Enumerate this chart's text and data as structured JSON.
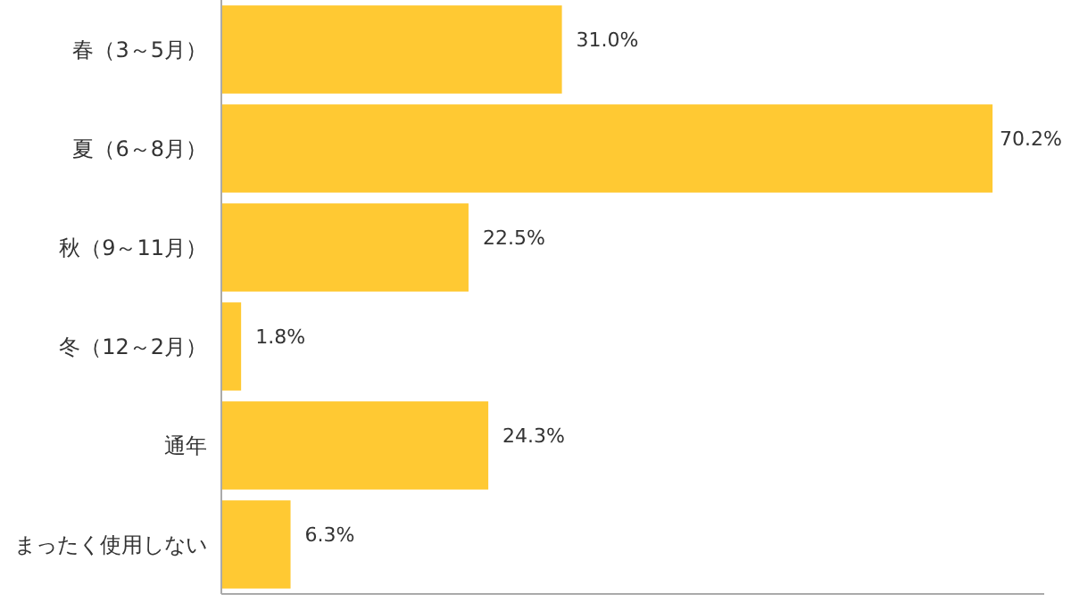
{
  "chart_data": {
    "type": "bar",
    "orientation": "horizontal",
    "categories": [
      "春（3～5月）",
      "夏（6～8月）",
      "秋（9～11月）",
      "冬（12～2月）",
      "通年",
      "まったく使用しない"
    ],
    "values": [
      31.0,
      70.2,
      22.5,
      1.8,
      24.3,
      6.3
    ],
    "value_labels": [
      "31.0%",
      "70.2%",
      "22.5%",
      "1.8%",
      "24.3%",
      "6.3%"
    ],
    "color": "#ffc933"
  }
}
